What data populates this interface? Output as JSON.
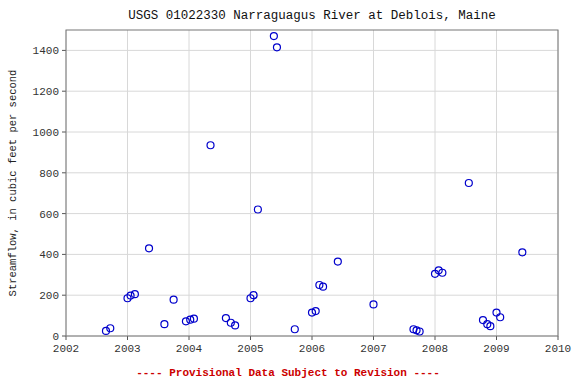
{
  "chart_data": {
    "type": "scatter",
    "title": "USGS 01022330 Narraguagus River at Deblois, Maine",
    "y_label": "Streamflow, in cubic feet per second",
    "annotations": [
      "---- Provisional Data Subject to Revision ----"
    ],
    "x": [
      2002.65,
      2002.72,
      2003.0,
      2003.05,
      2003.12,
      2003.35,
      2003.6,
      2003.75,
      2003.95,
      2004.02,
      2004.08,
      2004.35,
      2004.6,
      2004.68,
      2004.75,
      2005.0,
      2005.05,
      2005.12,
      2005.38,
      2005.43,
      2005.72,
      2006.0,
      2006.06,
      2006.12,
      2006.18,
      2006.42,
      2007.0,
      2007.65,
      2007.7,
      2007.75,
      2008.0,
      2008.06,
      2008.12,
      2008.55,
      2008.78,
      2008.85,
      2008.9,
      2009.0,
      2009.06,
      2009.42
    ],
    "values": [
      25,
      38,
      185,
      198,
      205,
      430,
      58,
      178,
      72,
      80,
      85,
      935,
      88,
      65,
      52,
      185,
      200,
      620,
      1470,
      1415,
      33,
      115,
      122,
      250,
      242,
      365,
      155,
      33,
      28,
      22,
      305,
      322,
      310,
      750,
      78,
      58,
      48,
      115,
      92,
      410
    ],
    "color": "#0000CC",
    "marker": "open-circle",
    "xlim": [
      2002,
      2010
    ],
    "ylim": [
      0,
      1500
    ],
    "xticks": [
      2002,
      2003,
      2004,
      2005,
      2006,
      2007,
      2008,
      2009,
      2010
    ],
    "yticks": [
      0,
      200,
      400,
      600,
      800,
      1000,
      1200,
      1400
    ],
    "grid": true
  }
}
